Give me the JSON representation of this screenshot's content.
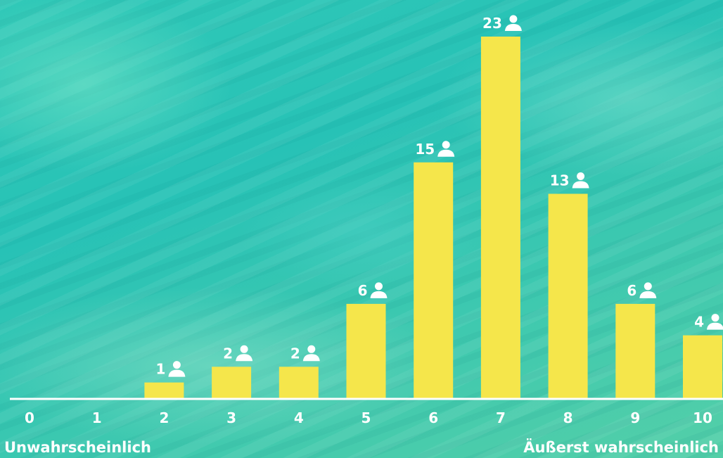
{
  "chart_data": {
    "type": "bar",
    "categories": [
      "0",
      "1",
      "2",
      "3",
      "4",
      "5",
      "6",
      "7",
      "8",
      "9",
      "10"
    ],
    "values": [
      0,
      0,
      1,
      2,
      2,
      6,
      15,
      23,
      13,
      6,
      4
    ],
    "ylim": [
      0,
      23
    ],
    "value_icon": "person-icon",
    "low_label": "Unwahrscheinlich",
    "high_label": "Äußerst wahrscheinlich",
    "colors": {
      "bar": "#f5e64b",
      "text": "#ffffff",
      "background": "#2fc6b6"
    }
  }
}
